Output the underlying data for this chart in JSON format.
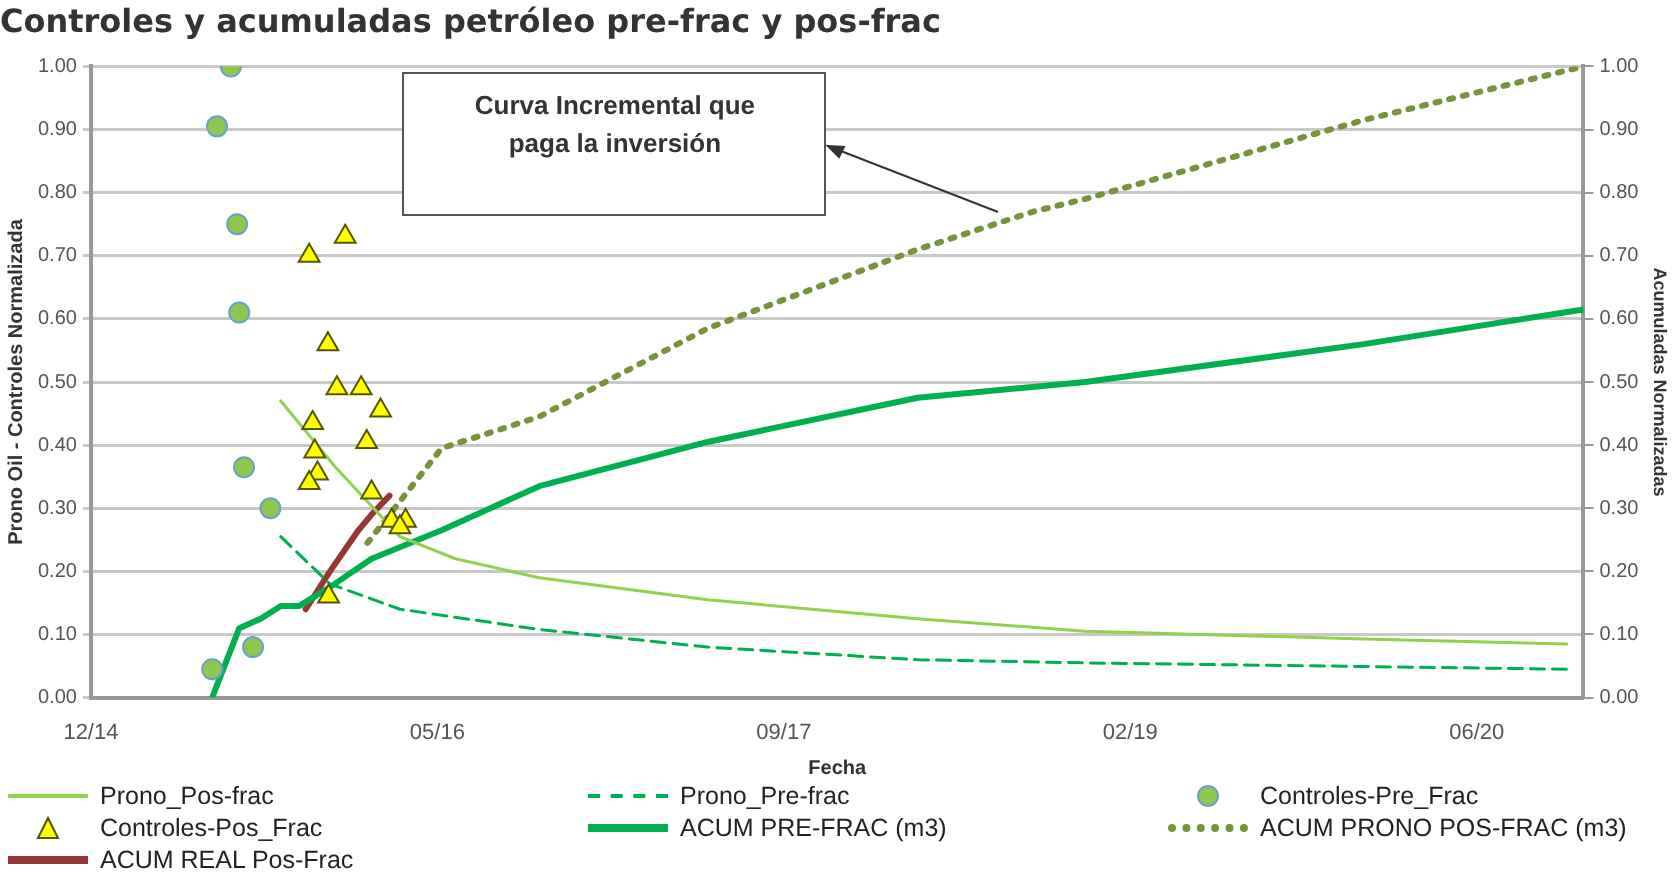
{
  "chart_data": {
    "type": "line",
    "title": "Controles y acumuladas petróleo pre-frac y pos-frac",
    "xlabel": "Fecha",
    "ylabel": "Prono Oil - Controles Normalizada",
    "y2label": "Acumuladas Normalizadas",
    "xlim": [
      "2014-12-31",
      "2020-11-23"
    ],
    "xticks": [
      {
        "value": "2014-12-31",
        "label": "12/14"
      },
      {
        "value": "2016-05-14",
        "label": "05/16"
      },
      {
        "value": "2017-09-26",
        "label": "09/17"
      },
      {
        "value": "2019-02-08",
        "label": "02/19"
      },
      {
        "value": "2020-06-22",
        "label": "06/20"
      }
    ],
    "ylim": [
      0,
      1
    ],
    "yticks": [
      {
        "value": 0,
        "label": "0.00"
      },
      {
        "value": 0.1,
        "label": "0.10"
      },
      {
        "value": 0.2,
        "label": "0.20"
      },
      {
        "value": 0.3,
        "label": "0.30"
      },
      {
        "value": 0.4,
        "label": "0.40"
      },
      {
        "value": 0.5,
        "label": "0.50"
      },
      {
        "value": 0.6,
        "label": "0.60"
      },
      {
        "value": 0.7,
        "label": "0.70"
      },
      {
        "value": 0.8,
        "label": "0.80"
      },
      {
        "value": 0.9,
        "label": "0.90"
      },
      {
        "value": 1,
        "label": "1.00"
      }
    ],
    "y2lim": [
      0,
      1
    ],
    "y2ticks": [
      {
        "value": 0,
        "label": "0.00"
      },
      {
        "value": 0.1,
        "label": "0.10"
      },
      {
        "value": 0.2,
        "label": "0.20"
      },
      {
        "value": 0.3,
        "label": "0.30"
      },
      {
        "value": 0.4,
        "label": "0.40"
      },
      {
        "value": 0.5,
        "label": "0.50"
      },
      {
        "value": 0.6,
        "label": "0.60"
      },
      {
        "value": 0.7,
        "label": "0.70"
      },
      {
        "value": 0.8,
        "label": "0.80"
      },
      {
        "value": 0.9,
        "label": "0.90"
      },
      {
        "value": 1,
        "label": "1.00"
      }
    ],
    "grid": "y",
    "legend": "bottom",
    "annotations": [
      "Curva Incremental que paga la inversión"
    ],
    "series": [
      {
        "name": "Prono_Pos-frac",
        "type": "line",
        "color": "#92d050",
        "marker": "none",
        "line_style": "solid",
        "x": [
          "2015-10-01",
          "2015-12-19",
          "2016-03-21",
          "2016-06-09",
          "2016-10-08",
          "2017-06-08",
          "2018-04-07",
          "2018-12-05",
          "2020-01-11",
          "2020-10-30"
        ],
        "values": [
          0.47,
          0.365,
          0.255,
          0.22,
          0.19,
          0.155,
          0.125,
          0.105,
          0.093,
          0.085
        ]
      },
      {
        "name": "Prono_Pre-frac",
        "type": "line",
        "color": "#00b050",
        "marker": "none",
        "line_style": "dashed",
        "x": [
          "2015-10-01",
          "2015-12-11",
          "2016-03-21",
          "2016-10-08",
          "2017-06-08",
          "2018-04-07",
          "2018-12-05",
          "2020-10-30"
        ],
        "values": [
          0.255,
          0.18,
          0.14,
          0.108,
          0.08,
          0.06,
          0.055,
          0.045
        ]
      },
      {
        "name": "Controles-Pre_Frac",
        "type": "scatter",
        "color": "#8cc84b",
        "marker": "circle",
        "x": [
          "2015-07-21",
          "2015-07-01",
          "2015-07-30",
          "2015-08-02",
          "2015-08-09",
          "2015-09-16",
          "2015-08-22",
          "2015-06-24"
        ],
        "values": [
          1.0,
          0.905,
          0.75,
          0.61,
          0.365,
          0.3,
          0.08,
          0.045
        ]
      },
      {
        "name": "Controles-Pos_Frac",
        "type": "scatter",
        "color": "#ffff00",
        "marker": "triangle",
        "x": [
          "2015-11-11",
          "2016-01-02",
          "2015-12-08",
          "2015-12-21",
          "2016-01-25",
          "2016-02-22",
          "2015-11-16",
          "2016-02-02",
          "2015-11-19",
          "2015-11-23",
          "2015-11-11",
          "2016-02-09",
          "2016-03-09",
          "2016-03-29",
          "2016-03-21",
          "2015-12-09"
        ],
        "values": [
          0.7,
          0.73,
          0.56,
          0.49,
          0.49,
          0.455,
          0.435,
          0.405,
          0.39,
          0.355,
          0.34,
          0.325,
          0.28,
          0.28,
          0.27,
          0.16
        ]
      },
      {
        "name": "ACUM PRE-FRAC (m3)",
        "type": "line",
        "axis": "y2",
        "color": "#00b050",
        "marker": "none",
        "line_style": "solid",
        "x": [
          "2015-06-24",
          "2015-08-02",
          "2015-09-02",
          "2015-10-01",
          "2015-10-27",
          "2015-12-11",
          "2016-02-09",
          "2016-05-20",
          "2016-10-08",
          "2017-06-08",
          "2018-04-07",
          "2018-12-05",
          "2020-01-11",
          "2020-11-23"
        ],
        "values": [
          0.0,
          0.11,
          0.125,
          0.145,
          0.145,
          0.175,
          0.22,
          0.265,
          0.335,
          0.405,
          0.475,
          0.5,
          0.56,
          0.615
        ]
      },
      {
        "name": "ACUM PRONO POS-FRAC (m3)",
        "type": "line",
        "axis": "y2",
        "color": "#77933c",
        "marker": "none",
        "line_style": "dotted",
        "x": [
          "2016-02-03",
          "2016-05-20",
          "2016-10-08",
          "2017-06-08",
          "2018-04-07",
          "2018-09-21",
          "2018-12-05",
          "2020-01-11",
          "2020-11-23"
        ],
        "values": [
          0.245,
          0.395,
          0.445,
          0.585,
          0.71,
          0.77,
          0.79,
          0.915,
          1.0
        ]
      },
      {
        "name": "ACUM REAL Pos-Frac",
        "type": "line",
        "axis": "y2",
        "color": "#953735",
        "marker": "none",
        "line_style": "solid",
        "x": [
          "2015-11-06",
          "2015-12-11",
          "2016-01-21",
          "2016-02-09",
          "2016-03-06"
        ],
        "values": [
          0.14,
          0.2,
          0.265,
          0.29,
          0.32
        ]
      }
    ]
  }
}
